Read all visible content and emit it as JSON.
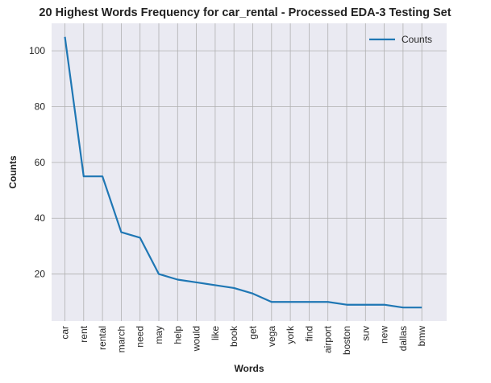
{
  "chart_data": {
    "type": "line",
    "title": "20 Highest Words Frequency for car_rental - Processed EDA-3 Testing Set",
    "xlabel": "Words",
    "ylabel": "Counts",
    "categories": [
      "car",
      "rent",
      "rental",
      "march",
      "need",
      "may",
      "help",
      "would",
      "like",
      "book",
      "get",
      "vega",
      "york",
      "find",
      "airport",
      "boston",
      "suv",
      "new",
      "dallas",
      "bmw"
    ],
    "series": [
      {
        "name": "Counts",
        "values": [
          105,
          55,
          55,
          35,
          33,
          20,
          18,
          17,
          16,
          15,
          13,
          10,
          10,
          10,
          10,
          9,
          9,
          9,
          8,
          8
        ]
      }
    ],
    "yticks": [
      20,
      40,
      60,
      80,
      100
    ],
    "ylim": [
      3.15,
      109.85
    ],
    "grid": true,
    "legend": "top-right",
    "colors": {
      "line": "#1f77b4",
      "plot_bg": "#eaeaf2",
      "grid": "#b0b0b0"
    }
  }
}
